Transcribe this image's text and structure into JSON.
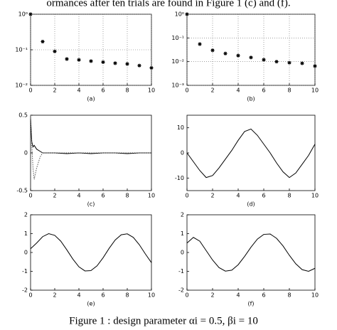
{
  "header_text": "ormances after ten trials are found in Figure 1 (c) and (f).",
  "caption": "Figure 1 : design parameter αi = 0.5, βi = 10",
  "chart_data": [
    {
      "type": "scatter",
      "xlabel": "(a)",
      "log_y": true,
      "grid": true,
      "color": "#000000",
      "x": [
        0,
        1,
        2,
        3,
        4,
        5,
        6,
        7,
        8,
        9,
        10
      ],
      "values": [
        1,
        0.17,
        0.09,
        0.055,
        0.052,
        0.048,
        0.045,
        0.042,
        0.04,
        0.036,
        0.031
      ],
      "xlim": [
        0,
        10
      ],
      "ylim": [
        0.01,
        1
      ],
      "xticks": [
        0,
        2,
        4,
        6,
        8,
        10
      ],
      "yticks": [
        {
          "value": 0.01,
          "label": "10⁻²"
        },
        {
          "value": 0.1,
          "label": "10⁻¹"
        },
        {
          "value": 1,
          "label": "10⁰"
        }
      ]
    },
    {
      "type": "scatter",
      "xlabel": "(b)",
      "log_y": true,
      "grid": true,
      "color": "#000000",
      "x": [
        0,
        1,
        2,
        3,
        4,
        5,
        6,
        7,
        8,
        9,
        10
      ],
      "values": [
        1,
        0.055,
        0.03,
        0.022,
        0.018,
        0.015,
        0.012,
        0.01,
        0.009,
        0.0085,
        0.0065
      ],
      "xlim": [
        0,
        10
      ],
      "ylim": [
        0.001,
        1
      ],
      "xticks": [
        0,
        2,
        4,
        6,
        8,
        10
      ],
      "yticks": [
        {
          "value": 0.001,
          "label": "10⁻³"
        },
        {
          "value": 0.01,
          "label": "10⁻²"
        },
        {
          "value": 0.1,
          "label": "10⁻¹"
        },
        {
          "value": 1,
          "label": "10⁰"
        }
      ]
    },
    {
      "type": "line",
      "xlabel": "(c)",
      "log_y": false,
      "grid": false,
      "x": [
        0,
        0.1,
        0.2,
        0.3,
        0.5,
        0.8,
        1,
        2,
        3,
        4,
        5,
        6,
        7,
        8,
        9,
        10
      ],
      "series": [
        {
          "color": "#000000",
          "linestyle": "solid",
          "values": [
            0.45,
            0.15,
            0.08,
            0.1,
            0.05,
            0.02,
            0,
            0,
            -0.01,
            0,
            -0.01,
            0,
            0,
            -0.01,
            0,
            0
          ]
        },
        {
          "color": "#555555",
          "linestyle": "dotted",
          "values": [
            0.5,
            0.1,
            -0.2,
            -0.35,
            -0.2,
            -0.05,
            0,
            0,
            0,
            0,
            0,
            0,
            0,
            0,
            0,
            0
          ]
        }
      ],
      "xlim": [
        0,
        10
      ],
      "ylim": [
        -0.5,
        0.5
      ],
      "xticks": [
        0,
        2,
        4,
        6,
        8,
        10
      ],
      "yticks": [
        -0.5,
        0,
        0.5
      ]
    },
    {
      "type": "line",
      "xlabel": "(d)",
      "log_y": false,
      "grid": false,
      "x": [
        0,
        0.5,
        1,
        1.5,
        2,
        2.5,
        3,
        3.5,
        4,
        4.5,
        5,
        5.5,
        6,
        6.5,
        7,
        7.5,
        8,
        8.5,
        9,
        9.5,
        10
      ],
      "series": [
        {
          "color": "#000000",
          "linestyle": "solid",
          "values": [
            0,
            -3.5,
            -7,
            -9.8,
            -9,
            -6,
            -2.5,
            1,
            5,
            8.5,
            9.5,
            7,
            3.5,
            0,
            -4,
            -7.5,
            -9.8,
            -8,
            -4.5,
            -1,
            3.5
          ]
        }
      ],
      "xlim": [
        0,
        10
      ],
      "ylim": [
        -15,
        15
      ],
      "xticks": [
        0,
        2,
        4,
        6,
        8,
        10
      ],
      "yticks": [
        -10,
        0,
        10
      ]
    },
    {
      "type": "line",
      "xlabel": "(e)",
      "log_y": false,
      "grid": false,
      "x": [
        0,
        0.5,
        1,
        1.5,
        2,
        2.5,
        3,
        3.5,
        4,
        4.5,
        5,
        5.5,
        6,
        6.5,
        7,
        7.5,
        8,
        8.5,
        9,
        9.5,
        10
      ],
      "series": [
        {
          "color": "#000000",
          "linestyle": "solid",
          "values": [
            0.2,
            0.5,
            0.84,
            1,
            0.91,
            0.6,
            0.14,
            -0.35,
            -0.76,
            -0.98,
            -0.96,
            -0.71,
            -0.28,
            0.22,
            0.66,
            0.94,
            0.99,
            0.8,
            0.41,
            -0.08,
            -0.54
          ]
        }
      ],
      "xlim": [
        0,
        10
      ],
      "ylim": [
        -2,
        2
      ],
      "xticks": [
        0,
        2,
        4,
        6,
        8,
        10
      ],
      "yticks": [
        -2,
        -1,
        0,
        1,
        2
      ]
    },
    {
      "type": "line",
      "xlabel": "(f)",
      "log_y": false,
      "grid": false,
      "x": [
        0,
        0.5,
        1,
        1.5,
        2,
        2.5,
        3,
        3.5,
        4,
        4.5,
        5,
        5.5,
        6,
        6.5,
        7,
        7.5,
        8,
        8.5,
        9,
        9.5,
        10
      ],
      "series": [
        {
          "color": "#000000",
          "linestyle": "solid",
          "values": [
            0.5,
            0.8,
            0.6,
            0.1,
            -0.4,
            -0.8,
            -0.99,
            -0.94,
            -0.65,
            -0.21,
            0.28,
            0.71,
            0.96,
            0.98,
            0.75,
            0.35,
            -0.15,
            -0.6,
            -0.91,
            -1,
            -0.84
          ]
        }
      ],
      "xlim": [
        0,
        10
      ],
      "ylim": [
        -2,
        2
      ],
      "xticks": [
        0,
        2,
        4,
        6,
        8,
        10
      ],
      "yticks": [
        -2,
        -1,
        0,
        1,
        2
      ]
    }
  ]
}
